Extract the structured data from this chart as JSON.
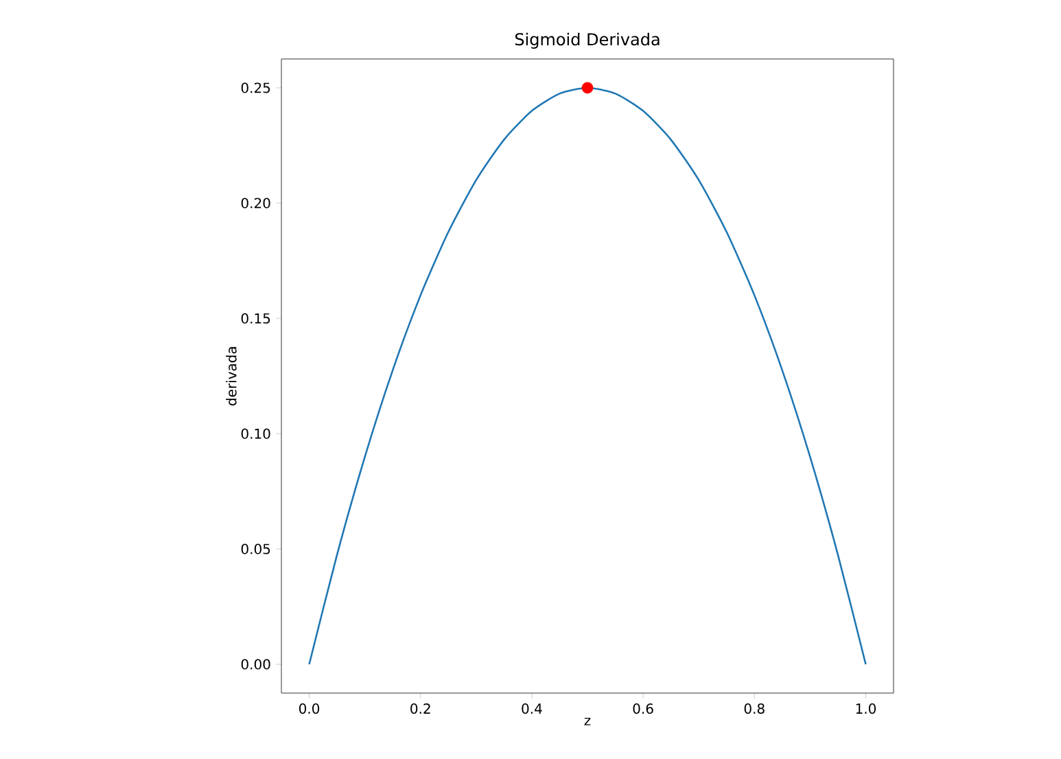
{
  "chart_data": {
    "type": "line",
    "title": "Sigmoid Derivada",
    "xlabel": "z",
    "ylabel": "derivada",
    "xlim": [
      -0.05,
      1.05
    ],
    "ylim": [
      -0.0125,
      0.2625
    ],
    "xticks": [
      {
        "value": 0,
        "label": "0.0"
      },
      {
        "value": 0.2,
        "label": "0.2"
      },
      {
        "value": 0.4,
        "label": "0.4"
      },
      {
        "value": 0.6,
        "label": "0.6"
      },
      {
        "value": 0.8,
        "label": "0.8"
      },
      {
        "value": 1,
        "label": "1.0"
      }
    ],
    "yticks": [
      {
        "value": 0,
        "label": "0.00"
      },
      {
        "value": 0.05,
        "label": "0.05"
      },
      {
        "value": 0.1,
        "label": "0.10"
      },
      {
        "value": 0.15,
        "label": "0.15"
      },
      {
        "value": 0.2,
        "label": "0.20"
      },
      {
        "value": 0.25,
        "label": "0.25"
      }
    ],
    "series": [
      {
        "color": "#1f77b4",
        "marker": "none",
        "x": [
          0,
          0.05,
          0.1,
          0.15,
          0.2,
          0.25,
          0.3,
          0.35,
          0.4,
          0.45,
          0.5,
          0.55,
          0.6,
          0.65,
          0.7,
          0.75,
          0.8,
          0.85,
          0.9,
          0.95,
          1
        ],
        "values": [
          0,
          0.0475,
          0.09,
          0.1275,
          0.16,
          0.1875,
          0.21,
          0.2275,
          0.24,
          0.2475,
          0.25,
          0.2475,
          0.24,
          0.2275,
          0.21,
          0.1875,
          0.16,
          0.1275,
          0.09,
          0.0475,
          0
        ]
      },
      {
        "type": "scatter",
        "color": "#ff0000",
        "marker": "circle",
        "x": [
          0.5
        ],
        "values": [
          0.25
        ]
      }
    ]
  }
}
